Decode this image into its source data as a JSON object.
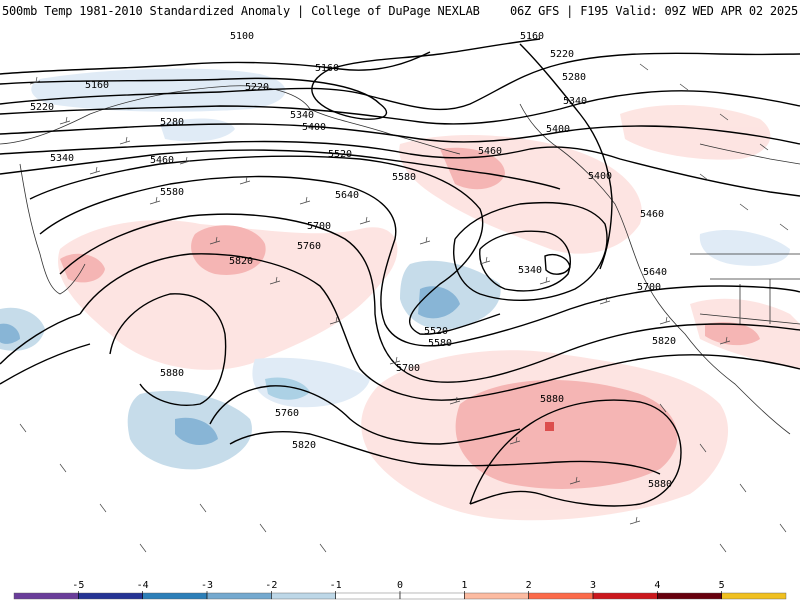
{
  "header": {
    "title": "500mb Temp 1981-2010 Standardized Anomaly | College of DuPage NEXLAB",
    "valid": "06Z GFS | F195 Valid: 09Z WED APR 02 2025"
  },
  "contour_labels": [
    "5100",
    "5160",
    "5220",
    "5280",
    "5340",
    "5400",
    "5460",
    "5520",
    "5580",
    "5640",
    "5700",
    "5760",
    "5820",
    "5880"
  ],
  "colorbar": {
    "ticks": [
      "-5",
      "-4",
      "-3",
      "-2",
      "-1",
      "0",
      "1",
      "2",
      "3",
      "4",
      "5"
    ],
    "colors": [
      "#6a3d9a",
      "#253494",
      "#2c7fb8",
      "#74a9cf",
      "#bdd7e7",
      "#ffffff",
      "#ffffff",
      "#fcbba1",
      "#fb6a4a",
      "#cb181d",
      "#67000d",
      "#f0c020"
    ]
  }
}
